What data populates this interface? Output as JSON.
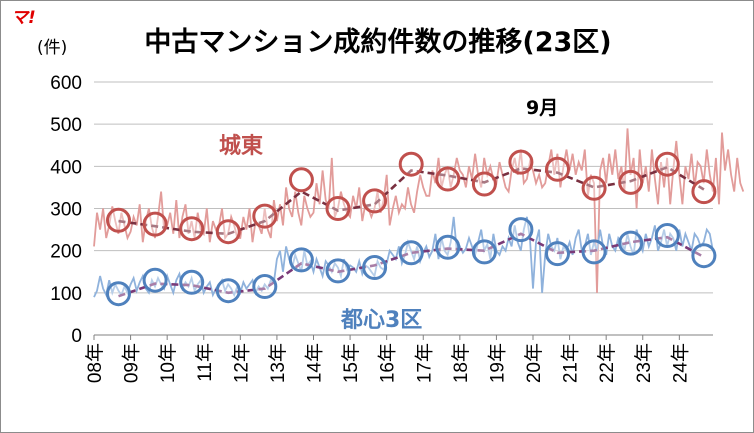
{
  "logo_text": "マ!",
  "chart_data": {
    "type": "line",
    "title": "中古マンション成約件数の推移(23区)",
    "ylabel": "(件)",
    "ylim": [
      0,
      600
    ],
    "yticks": [
      "0",
      "100",
      "200",
      "300",
      "400",
      "500",
      "600"
    ],
    "x_tick_labels": [
      "08年",
      "09年",
      "10年",
      "11年",
      "12年",
      "13年",
      "14年",
      "15年",
      "16年",
      "17年",
      "18年",
      "19年",
      "20年",
      "21年",
      "22年",
      "23年",
      "24年"
    ],
    "x_range_years": [
      2008,
      2024.92
    ],
    "grid": true,
    "annotations": {
      "month_label": "9月"
    },
    "colors": {
      "east_monthly": "#e29c9a",
      "east_sept": "#c0504d",
      "east_trend": "#7a3040",
      "center_monthly": "#8fb2dc",
      "center_sept": "#4f81bd",
      "center_trend": "#7a3a78"
    },
    "series": [
      {
        "name": "城東",
        "label_color": "#c0504d",
        "september": {
          "x": [
            2008.67,
            2009.67,
            2010.67,
            2011.67,
            2012.67,
            2013.67,
            2014.67,
            2015.67,
            2016.67,
            2017.67,
            2018.67,
            2019.67,
            2020.67,
            2021.67,
            2022.67,
            2023.67,
            2024.67
          ],
          "y": [
            272,
            263,
            252,
            245,
            282,
            368,
            300,
            318,
            405,
            370,
            358,
            410,
            393,
            348,
            362,
            405,
            340
          ]
        },
        "monthly": {
          "x0": 2008.0,
          "step": 0.08333,
          "values": [
            210,
            290,
            250,
            300,
            230,
            260,
            305,
            270,
            240,
            290,
            260,
            230,
            245,
            280,
            260,
            310,
            220,
            270,
            300,
            255,
            230,
            280,
            340,
            250,
            260,
            290,
            240,
            320,
            230,
            280,
            310,
            240,
            270,
            230,
            290,
            250,
            240,
            300,
            220,
            270,
            250,
            260,
            300,
            230,
            240,
            280,
            260,
            230,
            230,
            280,
            250,
            300,
            220,
            270,
            260,
            240,
            300,
            250,
            230,
            320,
            270,
            310,
            260,
            350,
            300,
            280,
            340,
            290,
            260,
            330,
            300,
            280,
            290,
            360,
            310,
            390,
            320,
            300,
            420,
            280,
            300,
            340,
            310,
            290,
            280,
            330,
            300,
            350,
            270,
            310,
            300,
            280,
            300,
            340,
            290,
            320,
            380,
            260,
            300,
            330,
            290,
            310,
            300,
            350,
            310,
            290,
            340,
            380,
            350,
            330,
            330,
            390,
            360,
            420,
            350,
            380,
            400,
            350,
            380,
            420,
            390,
            380,
            350,
            400,
            370,
            430,
            380,
            350,
            420,
            380,
            400,
            370,
            360,
            410,
            380,
            350,
            340,
            390,
            420,
            380,
            440,
            360,
            370,
            410,
            390,
            360,
            380,
            350,
            360,
            400,
            440,
            380,
            430,
            350,
            400,
            440,
            390,
            430,
            380,
            410,
            390,
            440,
            330,
            380,
            360,
            100,
            390,
            420,
            360,
            430,
            380,
            440,
            370,
            400,
            340,
            490,
            380,
            420,
            300,
            440,
            360,
            400,
            340,
            440,
            370,
            310,
            410,
            350,
            420,
            310,
            390,
            460,
            380,
            310,
            400,
            370,
            430,
            350,
            410,
            400,
            360,
            440,
            380,
            340,
            420,
            310,
            480,
            390,
            440,
            380,
            340,
            420,
            360,
            340
          ]
        },
        "trend": {
          "x": [
            2008.67,
            2009.67,
            2010.67,
            2011.67,
            2012.67,
            2013.67,
            2014.67,
            2015.67,
            2016.67,
            2017.67,
            2018.67,
            2019.67,
            2020.67,
            2021.67,
            2022.67,
            2023.67,
            2024.67
          ],
          "y": [
            270,
            258,
            245,
            240,
            270,
            340,
            295,
            310,
            390,
            378,
            362,
            395,
            385,
            350,
            365,
            398,
            345
          ]
        }
      },
      {
        "name": "都心3区",
        "label_color": "#4f81bd",
        "september": {
          "x": [
            2008.67,
            2009.67,
            2010.67,
            2011.67,
            2012.67,
            2013.67,
            2014.67,
            2015.67,
            2016.67,
            2017.67,
            2018.67,
            2019.67,
            2020.67,
            2021.67,
            2022.67,
            2023.67,
            2024.67
          ],
          "y": [
            98,
            130,
            125,
            105,
            115,
            178,
            152,
            160,
            195,
            208,
            197,
            250,
            193,
            197,
            218,
            236,
            188
          ]
        },
        "monthly": {
          "x0": 2008.0,
          "step": 0.08333,
          "values": [
            90,
            105,
            140,
            110,
            95,
            130,
            100,
            120,
            105,
            95,
            115,
            100,
            120,
            135,
            105,
            125,
            140,
            110,
            100,
            130,
            115,
            135,
            120,
            110,
            140,
            120,
            100,
            130,
            145,
            110,
            125,
            115,
            135,
            105,
            120,
            130,
            100,
            115,
            125,
            95,
            110,
            120,
            130,
            105,
            120,
            110,
            95,
            115,
            100,
            125,
            110,
            120,
            130,
            100,
            115,
            105,
            120,
            110,
            130,
            125,
            180,
            200,
            150,
            210,
            180,
            160,
            190,
            170,
            150,
            200,
            165,
            175,
            150,
            180,
            160,
            140,
            175,
            165,
            150,
            170,
            160,
            140,
            180,
            155,
            165,
            160,
            150,
            175,
            145,
            165,
            160,
            150,
            140,
            175,
            160,
            155,
            170,
            200,
            190,
            180,
            210,
            170,
            190,
            220,
            200,
            180,
            210,
            175,
            195,
            210,
            185,
            200,
            240,
            180,
            230,
            200,
            190,
            220,
            280,
            200,
            210,
            195,
            205,
            230,
            210,
            190,
            220,
            250,
            200,
            215,
            180,
            240,
            200,
            190,
            210,
            200,
            230,
            210,
            260,
            220,
            200,
            250,
            280,
            230,
            110,
            220,
            250,
            100,
            190,
            240,
            210,
            200,
            230,
            180,
            210,
            200,
            220,
            190,
            230,
            250,
            200,
            210,
            240,
            190,
            220,
            200,
            250,
            210,
            190,
            240,
            210,
            200,
            230,
            220,
            200,
            240,
            210,
            190,
            250,
            220,
            200,
            240,
            210,
            230,
            260,
            200,
            220,
            250,
            210,
            240,
            230,
            200,
            250,
            210,
            240,
            220,
            200,
            240,
            230,
            210,
            220,
            250,
            240,
            200
          ]
        },
        "trend": {
          "x": [
            2008.67,
            2009.67,
            2010.67,
            2011.67,
            2012.67,
            2013.67,
            2014.67,
            2015.67,
            2016.67,
            2017.67,
            2018.67,
            2019.67,
            2020.67,
            2021.67,
            2022.67,
            2023.67,
            2024.67
          ],
          "y": [
            92,
            122,
            118,
            100,
            110,
            170,
            150,
            165,
            195,
            205,
            200,
            240,
            195,
            200,
            220,
            232,
            185
          ]
        }
      }
    ]
  }
}
